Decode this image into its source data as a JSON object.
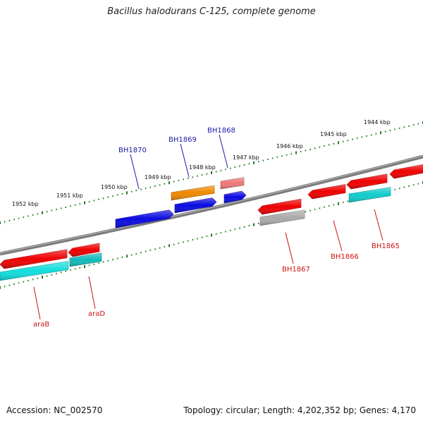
{
  "title": "Bacillus halodurans C-125, complete genome",
  "footer": {
    "accession": "Accession: NC_002570",
    "topology": "Topology: circular; Length: 4,202,352 bp; Genes: 4,170"
  },
  "colors": {
    "backbone": "#7a7a7a",
    "ticks": "#1e7a1e",
    "label_top": "#1a1aa6",
    "label_bottom": "#cc1111"
  },
  "scale_kbp": [
    "1952 kbp",
    "1951 kbp",
    "1950 kbp",
    "1949 kbp",
    "1948 kbp",
    "1947 kbp",
    "1946 kbp",
    "1945 kbp",
    "1944 kbp"
  ],
  "genes_top": [
    {
      "name": "BH1870",
      "color": "#0a0ae0",
      "strand": "+"
    },
    {
      "name": "BH1869",
      "color": "#0a0ae0",
      "strand": "+"
    },
    {
      "name": "BH1868",
      "color": "#0a0ae0",
      "strand": "+"
    }
  ],
  "features_top_row2": [
    {
      "color": "#ee8800",
      "strand": "none"
    },
    {
      "color": "#ee7777",
      "strand": "none"
    }
  ],
  "genes_bottom": [
    {
      "name": "araB",
      "color": "#ee0000",
      "strand": "-"
    },
    {
      "name": "araD",
      "color": "#ee0000",
      "strand": "-"
    },
    {
      "name": "BH1867",
      "color": "#ee0000",
      "strand": "-"
    },
    {
      "name": "BH1866",
      "color": "#ee0000",
      "strand": "-"
    },
    {
      "name": "BH1865",
      "color": "#ee0000",
      "strand": "-"
    },
    {
      "name": "",
      "color": "#ee0000",
      "strand": "-"
    }
  ],
  "features_bottom_row2": [
    {
      "color": "#11dddd",
      "strand": "none"
    },
    {
      "color": "#11bbbb",
      "strand": "none"
    },
    {
      "color": "#aaaaaa",
      "strand": "none"
    },
    {
      "color": "#11cccc",
      "strand": "none"
    }
  ]
}
